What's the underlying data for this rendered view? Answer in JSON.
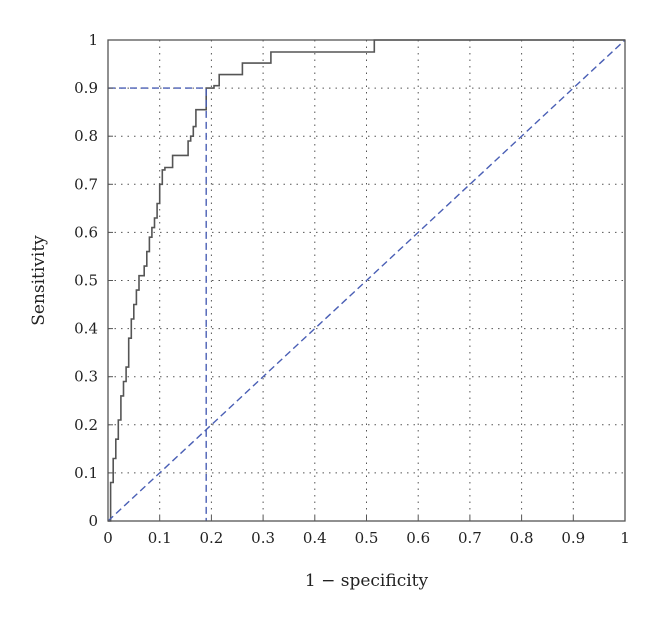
{
  "chart_data": {
    "type": "line",
    "xlabel": "1 − specificity",
    "ylabel": "Sensitivity",
    "xlim": [
      0,
      1
    ],
    "ylim": [
      0,
      1
    ],
    "xticks": [
      "0",
      "0.1",
      "0.2",
      "0.3",
      "0.4",
      "0.5",
      "0.6",
      "0.7",
      "0.8",
      "0.9",
      "1"
    ],
    "yticks": [
      "0",
      "0.1",
      "0.2",
      "0.3",
      "0.4",
      "0.5",
      "0.6",
      "0.7",
      "0.8",
      "0.9",
      "1"
    ],
    "grid": true,
    "legend": "none",
    "series": [
      {
        "style": "solid-step",
        "color": "#555555",
        "x": [
          0,
          0.005,
          0.005,
          0.01,
          0.01,
          0.015,
          0.015,
          0.02,
          0.02,
          0.025,
          0.025,
          0.03,
          0.03,
          0.035,
          0.035,
          0.04,
          0.04,
          0.045,
          0.045,
          0.05,
          0.05,
          0.055,
          0.055,
          0.06,
          0.06,
          0.07,
          0.07,
          0.075,
          0.075,
          0.08,
          0.08,
          0.085,
          0.085,
          0.09,
          0.09,
          0.095,
          0.095,
          0.1,
          0.1,
          0.105,
          0.105,
          0.11,
          0.11,
          0.125,
          0.125,
          0.14,
          0.14,
          0.155,
          0.155,
          0.16,
          0.16,
          0.165,
          0.165,
          0.17,
          0.17,
          0.175,
          0.175,
          0.19,
          0.19,
          0.205,
          0.205,
          0.215,
          0.215,
          0.26,
          0.26,
          0.315,
          0.315,
          0.515,
          0.515,
          1
        ],
        "y": [
          0,
          0,
          0.08,
          0.08,
          0.13,
          0.13,
          0.17,
          0.17,
          0.21,
          0.21,
          0.26,
          0.26,
          0.29,
          0.29,
          0.32,
          0.32,
          0.38,
          0.38,
          0.42,
          0.42,
          0.45,
          0.45,
          0.48,
          0.48,
          0.51,
          0.51,
          0.53,
          0.53,
          0.56,
          0.56,
          0.59,
          0.59,
          0.61,
          0.61,
          0.63,
          0.63,
          0.66,
          0.66,
          0.7,
          0.7,
          0.73,
          0.73,
          0.735,
          0.735,
          0.76,
          0.76,
          0.76,
          0.76,
          0.79,
          0.79,
          0.8,
          0.8,
          0.82,
          0.82,
          0.855,
          0.855,
          0.855,
          0.855,
          0.9,
          0.9,
          0.905,
          0.905,
          0.928,
          0.928,
          0.952,
          0.952,
          0.975,
          0.975,
          1,
          1
        ]
      },
      {
        "style": "dashed",
        "color": "#4a5fb5",
        "x": [
          0,
          1
        ],
        "y": [
          0,
          1
        ]
      },
      {
        "style": "dashed",
        "color": "#4a5fb5",
        "x": [
          0,
          0.19,
          0.19
        ],
        "y": [
          0.9,
          0.9,
          0
        ]
      }
    ]
  }
}
